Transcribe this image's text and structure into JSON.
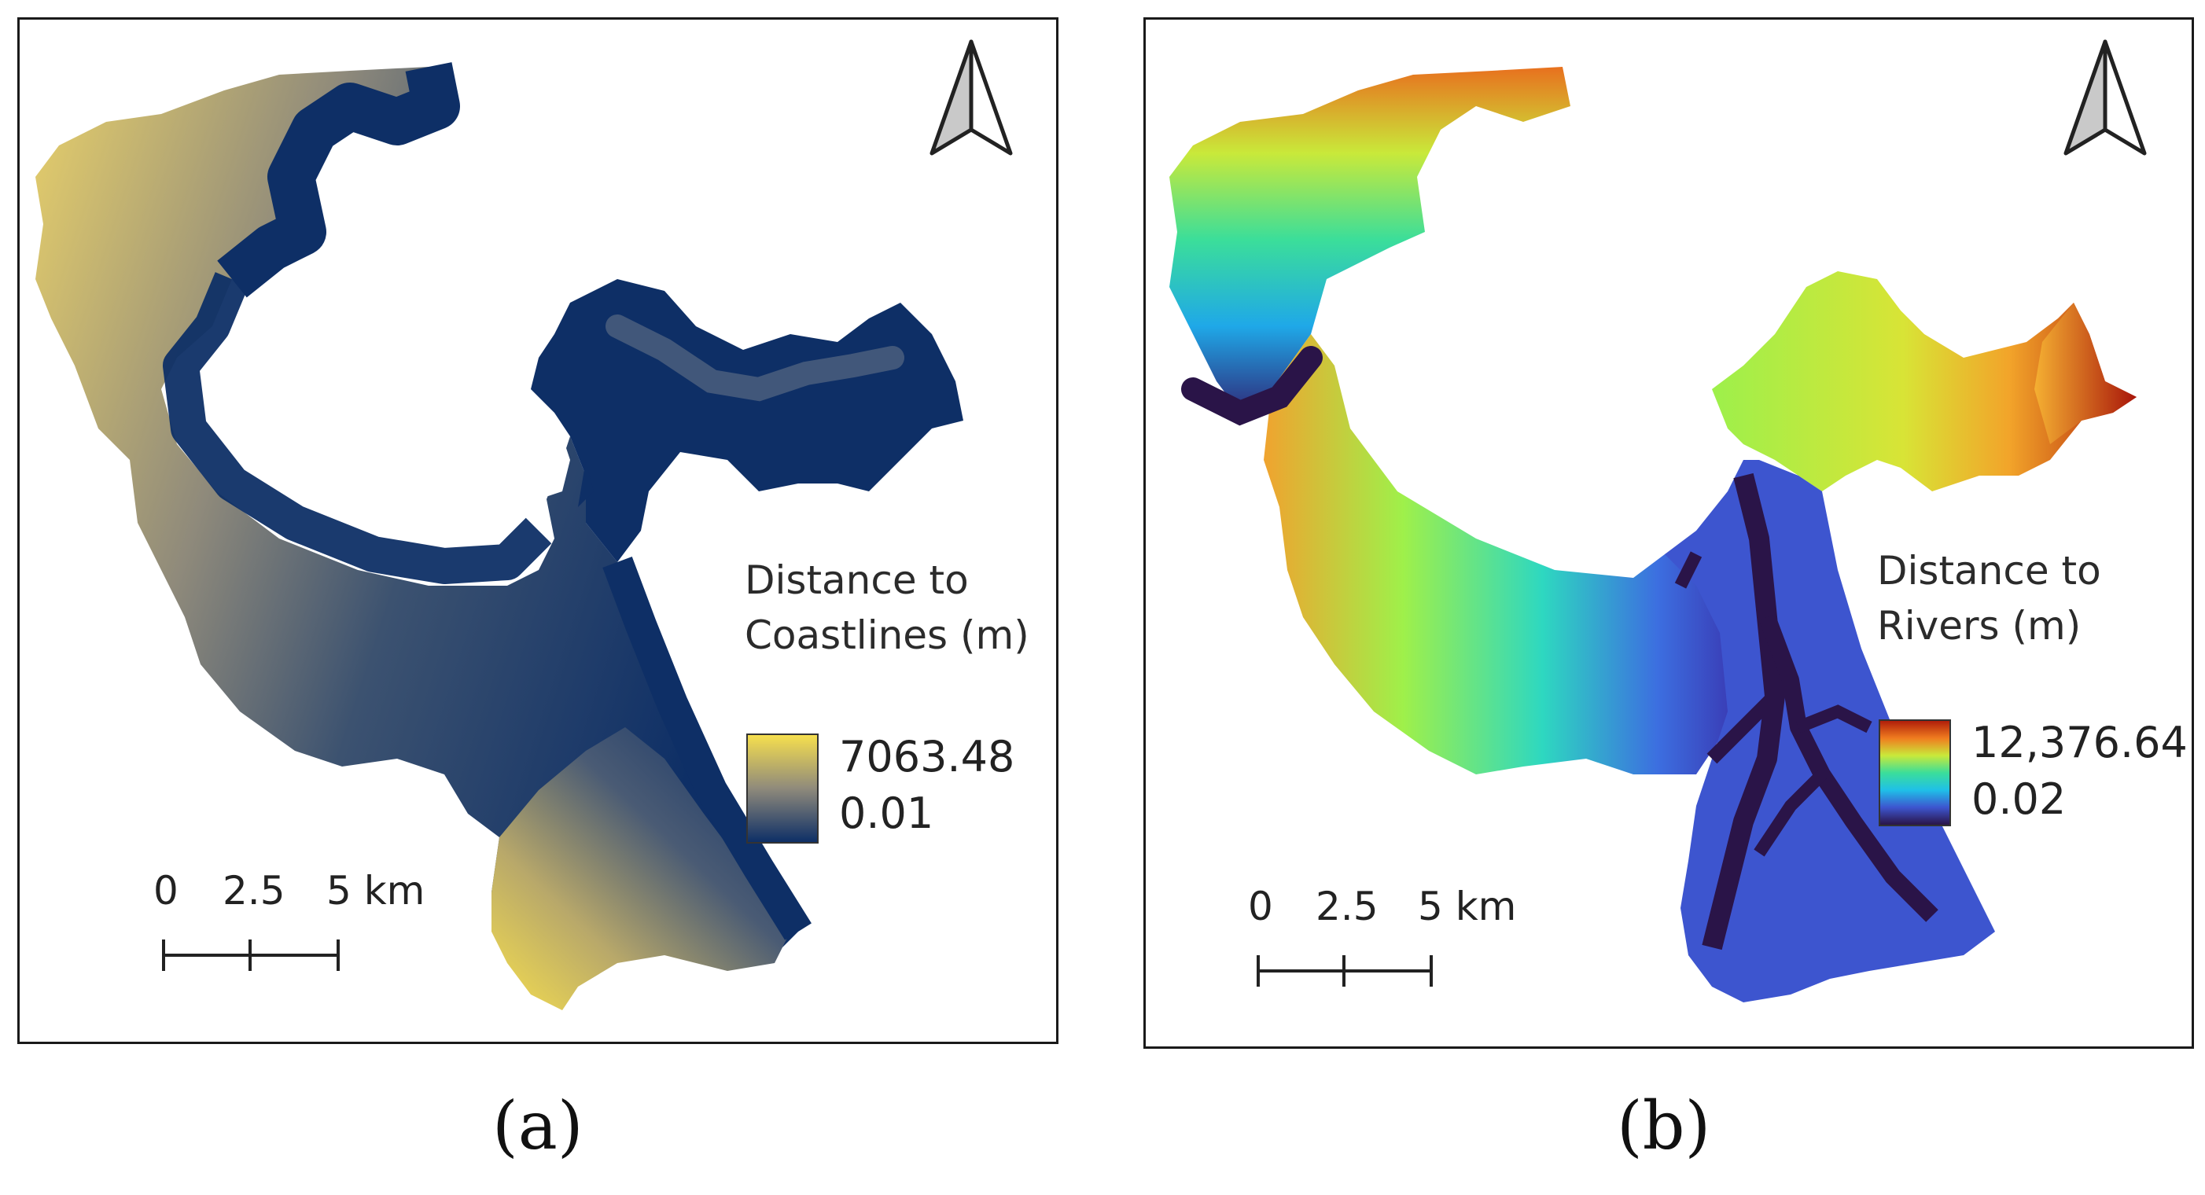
{
  "panels": [
    {
      "caption": "(a)",
      "legend_title_line1": "Distance to",
      "legend_title_line2": "Coastlines (m)",
      "legend_max": "7063.48",
      "legend_min": "0.01",
      "color_ramp": [
        "#f6df4e",
        "#8f8a7b",
        "#0e2f66"
      ],
      "scale": {
        "label_0": "0",
        "label_mid": "2.5",
        "label_end": "5 km"
      },
      "north_arrow": "north-arrow-icon"
    },
    {
      "caption": "(b)",
      "legend_title_line1": "Distance to",
      "legend_title_line2": "Rivers (m)",
      "legend_max": "12,376.64",
      "legend_min": "0.02",
      "color_ramp": [
        "#b01e0a",
        "#f07c1f",
        "#c9e93a",
        "#3bde9a",
        "#1fc0e8",
        "#3d55cf",
        "#2a1448"
      ],
      "scale": {
        "label_0": "0",
        "label_mid": "2.5",
        "label_end": "5 km"
      },
      "north_arrow": "north-arrow-icon"
    }
  ]
}
